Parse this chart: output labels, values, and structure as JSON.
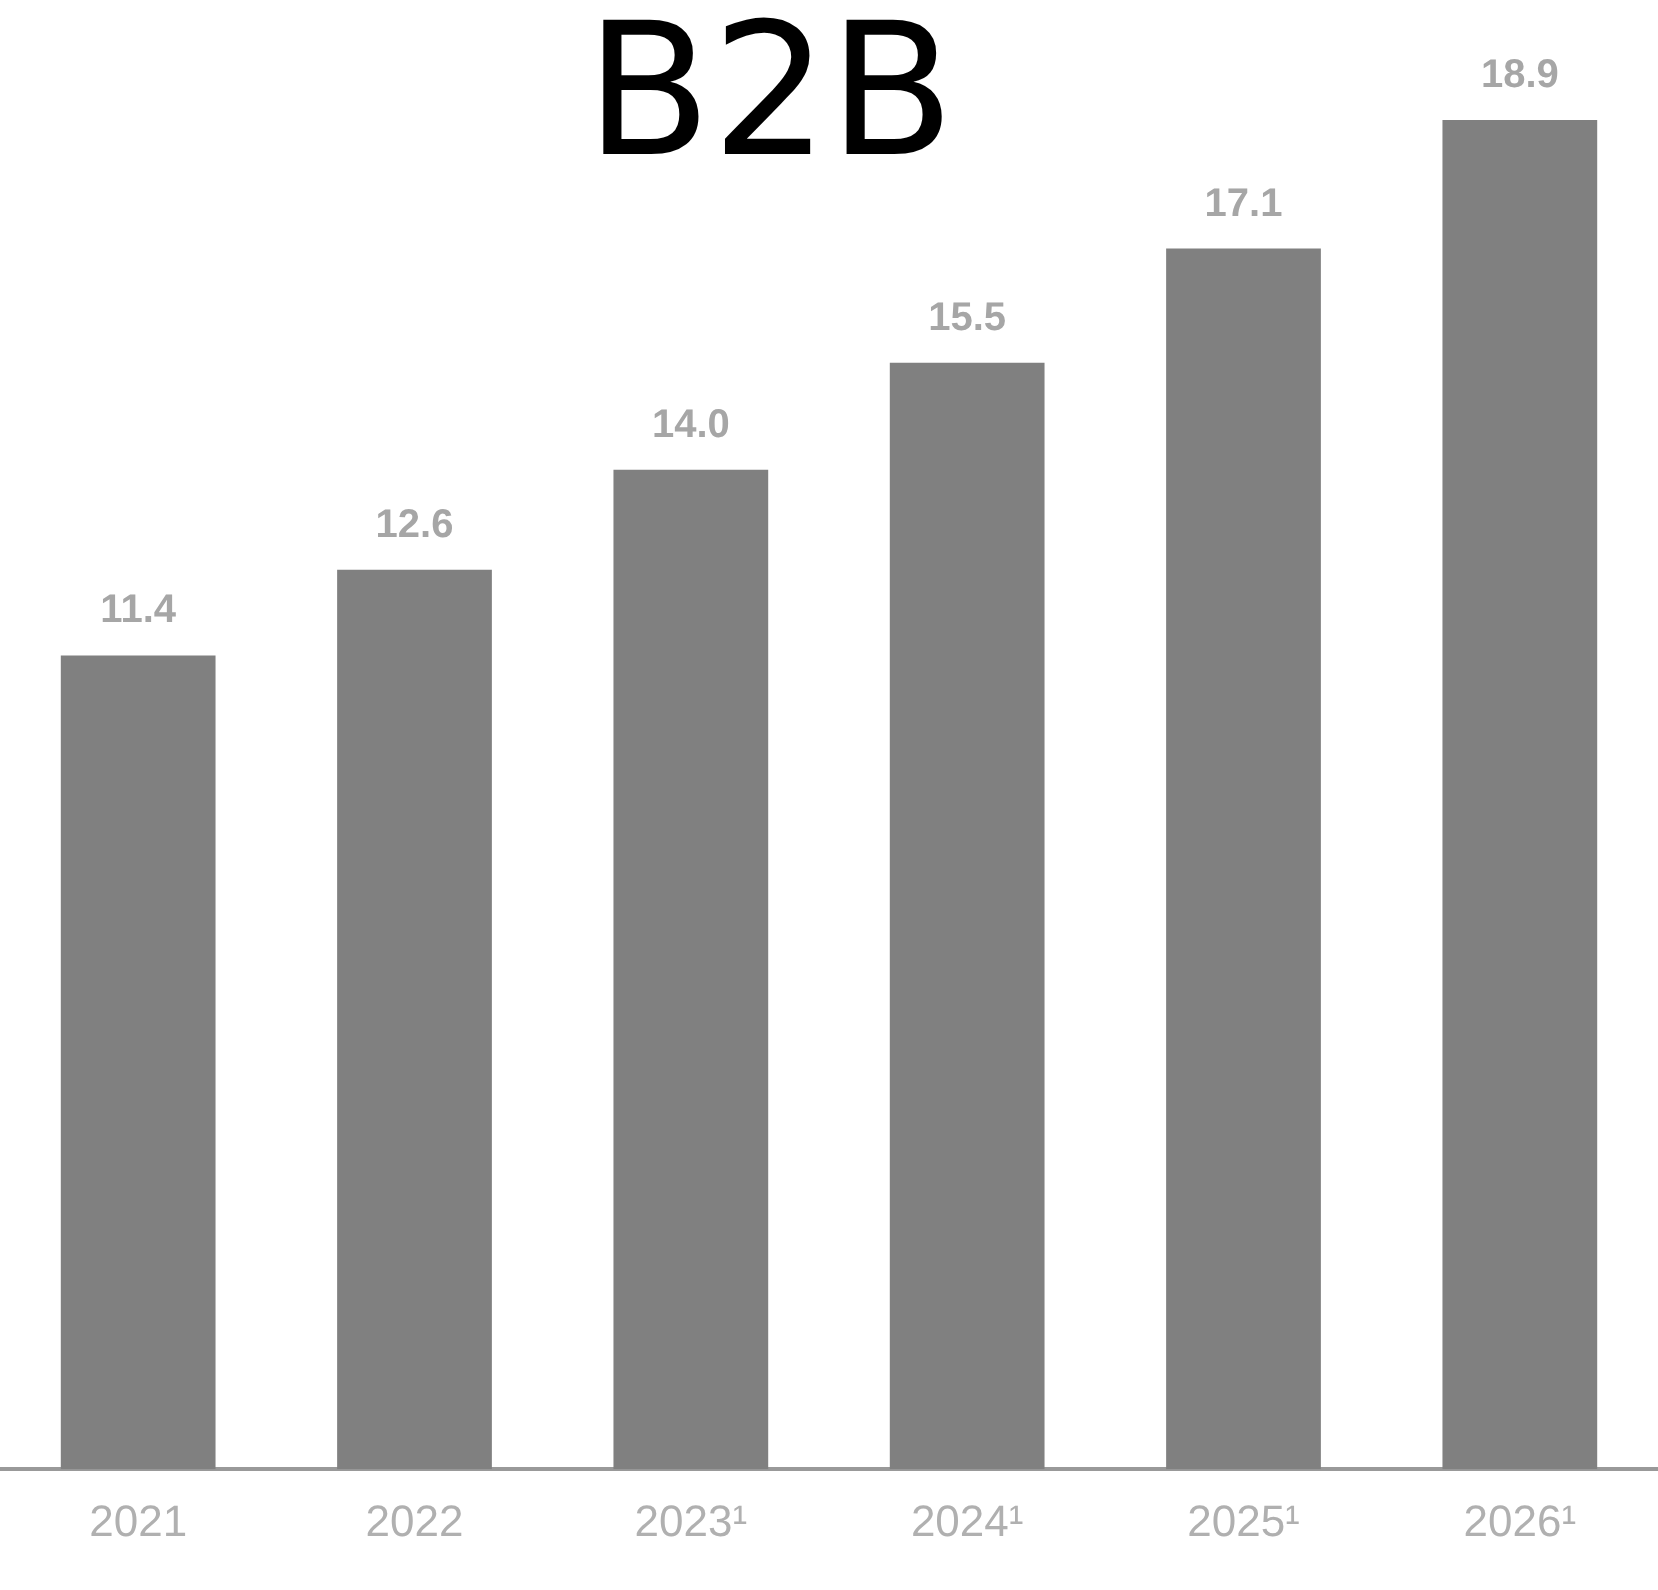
{
  "chart_data": {
    "type": "bar",
    "title": "B2B",
    "categories": [
      "2021",
      "2022",
      "2023¹",
      "2024¹",
      "2025¹",
      "2026¹"
    ],
    "values": [
      11.4,
      12.6,
      14.0,
      15.5,
      17.1,
      18.9
    ],
    "value_labels": [
      "11.4",
      "12.6",
      "14.0",
      "15.5",
      "17.1",
      "18.9"
    ],
    "color": "#808080",
    "grid": false,
    "legend": false
  }
}
